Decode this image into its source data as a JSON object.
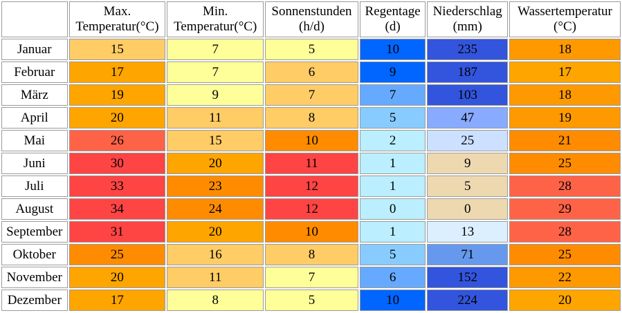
{
  "chart_data": {
    "type": "table",
    "columns": [
      {
        "key": "max",
        "line1": "Max.",
        "line2": "Temperatur(°C)"
      },
      {
        "key": "min",
        "line1": "Min.",
        "line2": "Temperatur(°C)"
      },
      {
        "key": "sun",
        "line1": "Sonnenstunden",
        "line2": "(h/d)"
      },
      {
        "key": "rain",
        "line1": "Regentage",
        "line2": "(d)"
      },
      {
        "key": "prec",
        "line1": "Niederschlag",
        "line2": "(mm)"
      },
      {
        "key": "water",
        "line1": "Wassertemperatur",
        "line2": "(°C)"
      }
    ],
    "rows": [
      {
        "month": "Januar",
        "max": "15",
        "min": "7",
        "sun": "5",
        "rain": "10",
        "prec": "235",
        "water": "18"
      },
      {
        "month": "Februar",
        "max": "17",
        "min": "7",
        "sun": "6",
        "rain": "9",
        "prec": "187",
        "water": "17"
      },
      {
        "month": "März",
        "max": "19",
        "min": "9",
        "sun": "7",
        "rain": "7",
        "prec": "103",
        "water": "18"
      },
      {
        "month": "April",
        "max": "20",
        "min": "11",
        "sun": "8",
        "rain": "5",
        "prec": "47",
        "water": "19"
      },
      {
        "month": "Mai",
        "max": "26",
        "min": "15",
        "sun": "10",
        "rain": "2",
        "prec": "25",
        "water": "21"
      },
      {
        "month": "Juni",
        "max": "30",
        "min": "20",
        "sun": "11",
        "rain": "1",
        "prec": "9",
        "water": "25"
      },
      {
        "month": "Juli",
        "max": "33",
        "min": "23",
        "sun": "12",
        "rain": "1",
        "prec": "5",
        "water": "28"
      },
      {
        "month": "August",
        "max": "34",
        "min": "24",
        "sun": "12",
        "rain": "0",
        "prec": "0",
        "water": "29"
      },
      {
        "month": "September",
        "max": "31",
        "min": "20",
        "sun": "10",
        "rain": "1",
        "prec": "13",
        "water": "28"
      },
      {
        "month": "Oktober",
        "max": "25",
        "min": "16",
        "sun": "8",
        "rain": "5",
        "prec": "71",
        "water": "25"
      },
      {
        "month": "November",
        "max": "20",
        "min": "11",
        "sun": "7",
        "rain": "6",
        "prec": "152",
        "water": "22"
      },
      {
        "month": "Dezember",
        "max": "17",
        "min": "8",
        "sun": "5",
        "rain": "10",
        "prec": "224",
        "water": "20"
      }
    ],
    "cell_colors": [
      {
        "max": "#ffcc66",
        "min": "#ffff99",
        "sun": "#ffff99",
        "rain": "#0066ff",
        "prec": "#3355dd",
        "water": "#ff9900"
      },
      {
        "max": "#ffa500",
        "min": "#ffff99",
        "sun": "#ffcc66",
        "rain": "#0066ff",
        "prec": "#3355dd",
        "water": "#ffa500"
      },
      {
        "max": "#ffa500",
        "min": "#ffff99",
        "sun": "#ffcc66",
        "rain": "#66aaff",
        "prec": "#3355dd",
        "water": "#ff9900"
      },
      {
        "max": "#ffa500",
        "min": "#ffcc66",
        "sun": "#ffcc66",
        "rain": "#88ccff",
        "prec": "#88aaff",
        "water": "#ff9900"
      },
      {
        "max": "#ff6347",
        "min": "#ffcc66",
        "sun": "#ff8c00",
        "rain": "#bbeeff",
        "prec": "#cce0ff",
        "water": "#ff8c00"
      },
      {
        "max": "#ff4444",
        "min": "#ffa500",
        "sun": "#ff4444",
        "rain": "#bbeeff",
        "prec": "#eed8b0",
        "water": "#ff8c00"
      },
      {
        "max": "#ff4444",
        "min": "#ff8c00",
        "sun": "#ff4444",
        "rain": "#bbeeff",
        "prec": "#eed8b0",
        "water": "#ff6347"
      },
      {
        "max": "#ff4444",
        "min": "#ff8c00",
        "sun": "#ff4444",
        "rain": "#bbeeff",
        "prec": "#eed8b0",
        "water": "#ff6347"
      },
      {
        "max": "#ff4444",
        "min": "#ffa500",
        "sun": "#ff8c00",
        "rain": "#bbeeff",
        "prec": "#dcefff",
        "water": "#ff6347"
      },
      {
        "max": "#ff8c00",
        "min": "#ffcc66",
        "sun": "#ffcc66",
        "rain": "#88ccff",
        "prec": "#6699ee",
        "water": "#ff8c00"
      },
      {
        "max": "#ffa500",
        "min": "#ffcc66",
        "sun": "#ffff99",
        "rain": "#66aaff",
        "prec": "#3355dd",
        "water": "#ff9900"
      },
      {
        "max": "#ffa500",
        "min": "#ffff99",
        "sun": "#ffff99",
        "rain": "#0066ff",
        "prec": "#3355dd",
        "water": "#ffa500"
      }
    ]
  }
}
